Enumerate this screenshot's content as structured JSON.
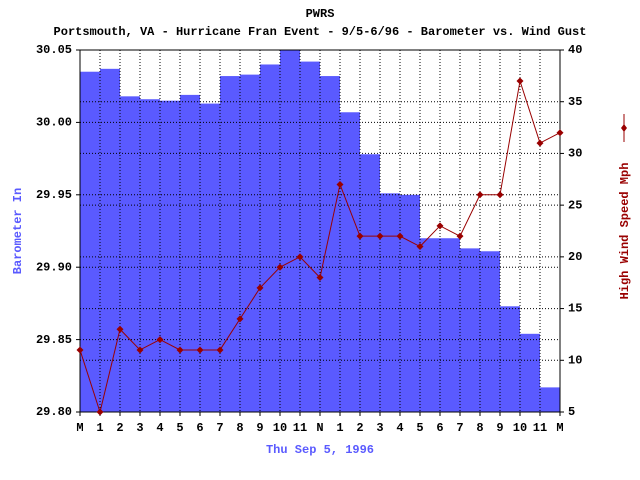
{
  "chart_data": {
    "type": "bar+line",
    "title": "PWRS",
    "subtitle": "Portsmouth, VA - Hurricane Fran Event - 9/5-6/96 - Barometer vs. Wind Gust",
    "x_label": "Thu Sep  5, 1996",
    "categories": [
      "M",
      "1",
      "2",
      "3",
      "4",
      "5",
      "6",
      "7",
      "8",
      "9",
      "10",
      "11",
      "N",
      "1",
      "2",
      "3",
      "4",
      "5",
      "6",
      "7",
      "8",
      "9",
      "10",
      "11",
      "M"
    ],
    "series": [
      {
        "name": "Barometer In",
        "type": "bar",
        "color": "#5a5aff",
        "axis": "y",
        "values": [
          30.035,
          30.037,
          30.018,
          30.016,
          30.015,
          30.019,
          30.013,
          30.032,
          30.033,
          30.04,
          30.05,
          30.042,
          30.032,
          30.007,
          29.978,
          29.951,
          29.95,
          29.92,
          29.92,
          29.913,
          29.911,
          29.873,
          29.854,
          29.817,
          null
        ]
      },
      {
        "name": "High Wind Speed Mph",
        "type": "line",
        "color": "#990000",
        "axis": "y2",
        "values": [
          11,
          5,
          13,
          11,
          12,
          11,
          11,
          11,
          14,
          17,
          19,
          20,
          18,
          27,
          22,
          22,
          22,
          21,
          23,
          22,
          26,
          26,
          37,
          31,
          32
        ]
      }
    ],
    "ylim": [
      29.8,
      30.05
    ],
    "yticks": [
      {
        "value": 29.8,
        "label": "29.80"
      },
      29.85,
      {
        "value": 29.9,
        "label": "29.90"
      },
      29.95,
      {
        "value": 30.0,
        "label": "30.00"
      },
      30.05
    ],
    "y2lim": [
      5,
      40
    ],
    "y2ticks": [
      5,
      10,
      15,
      20,
      25,
      30,
      35,
      40
    ],
    "grid": true
  }
}
